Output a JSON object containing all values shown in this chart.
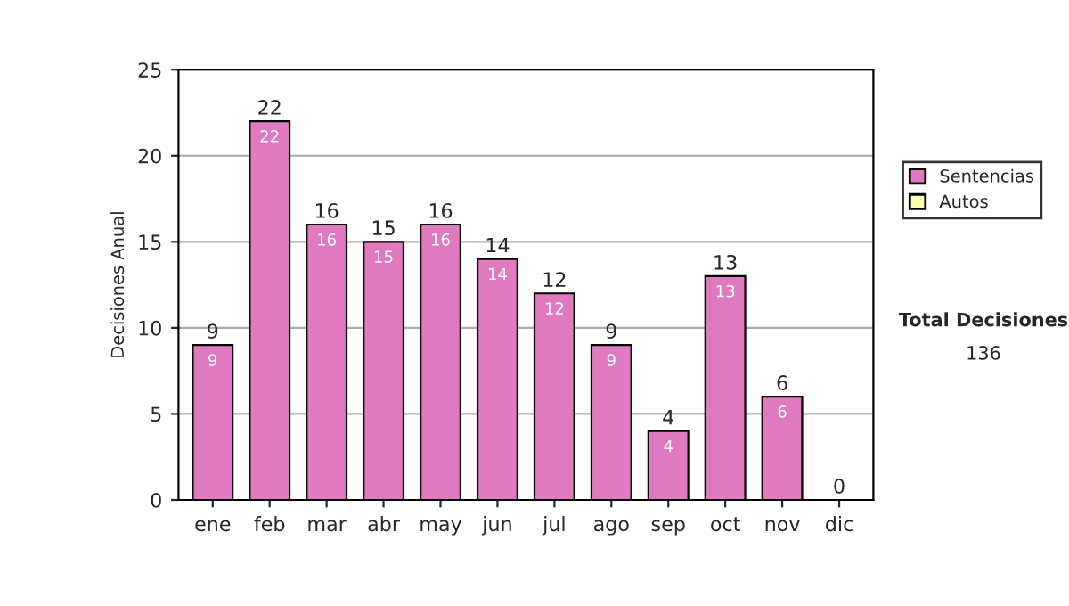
{
  "chart_data": {
    "type": "bar",
    "ylabel": "Decisiones Anual",
    "categories": [
      "ene",
      "feb",
      "mar",
      "abr",
      "may",
      "jun",
      "jul",
      "ago",
      "sep",
      "oct",
      "nov",
      "dic"
    ],
    "series": [
      {
        "name": "Sentencias",
        "color": "#e07ac0",
        "values": [
          9,
          22,
          16,
          15,
          16,
          14,
          12,
          9,
          4,
          13,
          6,
          0
        ],
        "value_labels": [
          "9",
          "22",
          "16",
          "15",
          "16",
          "14",
          "12",
          "9",
          "4",
          "13",
          "6",
          null
        ]
      },
      {
        "name": "Autos",
        "color": "#ffffb0",
        "values": [
          0,
          0,
          0,
          0,
          0,
          0,
          0,
          0,
          0,
          0,
          0,
          0
        ]
      }
    ],
    "stacked": true,
    "totals": [
      "9",
      "22",
      "16",
      "15",
      "16",
      "14",
      "12",
      "9",
      "4",
      "13",
      "6",
      "0"
    ],
    "ylim": [
      0,
      25
    ],
    "yticks": [
      0,
      5,
      10,
      15,
      20,
      25
    ],
    "grid": "y",
    "legend": "right",
    "annotations": [
      "Total Decisiones",
      "136"
    ]
  }
}
